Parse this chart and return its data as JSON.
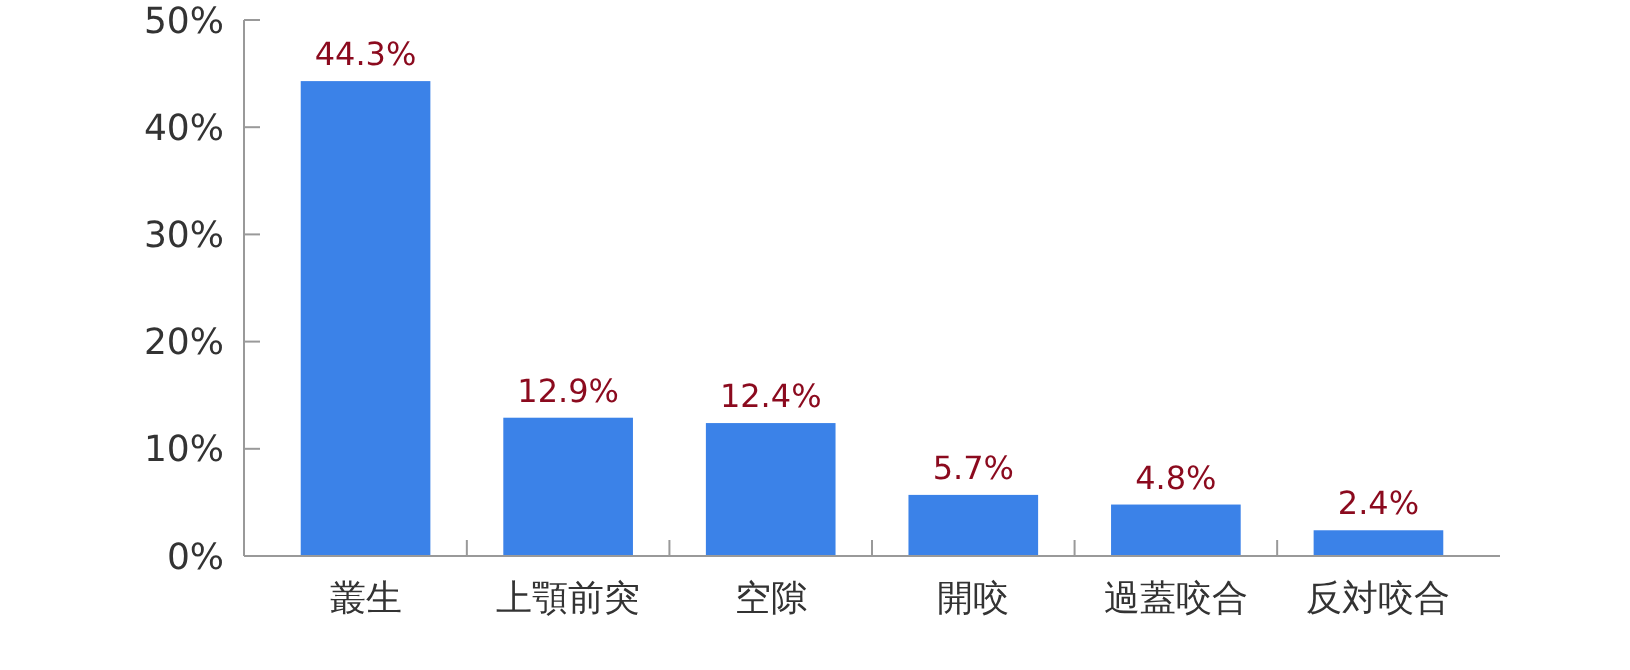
{
  "chart_data": {
    "type": "bar",
    "categories": [
      "叢生",
      "上顎前突",
      "空隙",
      "開咬",
      "過蓋咬合",
      "反対咬合"
    ],
    "values": [
      44.3,
      12.9,
      12.4,
      5.7,
      4.8,
      2.4
    ],
    "value_labels": [
      "44.3%",
      "12.9%",
      "12.4%",
      "5.7%",
      "4.8%",
      "2.4%"
    ],
    "color": "#3b82e8",
    "ylim": [
      0,
      50
    ],
    "yticks": [
      {
        "value": 0,
        "label": "0%"
      },
      {
        "value": 10,
        "label": "10%"
      },
      {
        "value": 20,
        "label": "20%"
      },
      {
        "value": 30,
        "label": "30%"
      },
      {
        "value": 40,
        "label": "40%"
      },
      {
        "value": 50,
        "label": "50%"
      }
    ],
    "grid": false
  }
}
